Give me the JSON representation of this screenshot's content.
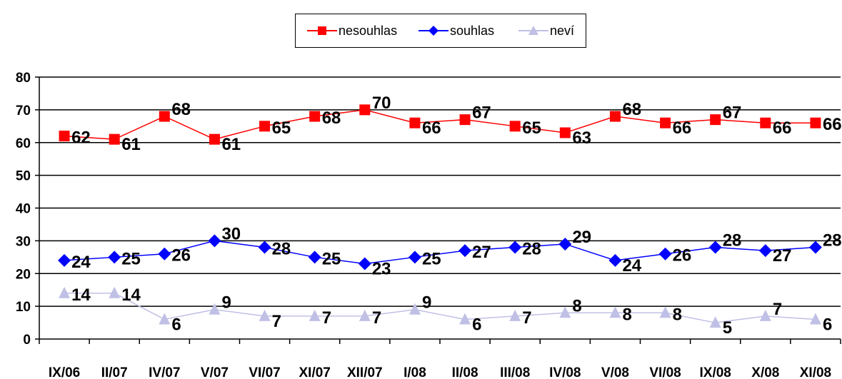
{
  "chart_data": {
    "type": "line",
    "categories": [
      "IX/06",
      "II/07",
      "IV/07",
      "V/07",
      "VI/07",
      "XI/07",
      "XII/07",
      "I/08",
      "II/08",
      "III/08",
      "IV/08",
      "V/08",
      "VI/08",
      "IX/08",
      "X/08",
      "XI/08"
    ],
    "series": [
      {
        "name": "nesouhlas",
        "color": "#ff0000",
        "marker": "square",
        "values": [
          62,
          61,
          68,
          61,
          65,
          68,
          70,
          66,
          67,
          65,
          63,
          68,
          66,
          67,
          66,
          66
        ]
      },
      {
        "name": "souhlas",
        "color": "#0000ff",
        "marker": "diamond",
        "values": [
          24,
          25,
          26,
          30,
          28,
          25,
          23,
          25,
          27,
          28,
          29,
          24,
          26,
          28,
          27,
          28
        ]
      },
      {
        "name": "neví",
        "color": "#c0c0e6",
        "marker": "triangle",
        "values": [
          14,
          14,
          6,
          9,
          7,
          7,
          7,
          9,
          6,
          7,
          8,
          8,
          8,
          5,
          7,
          6
        ]
      }
    ],
    "ylim": [
      0,
      80
    ],
    "yticks": [
      0,
      10,
      20,
      30,
      40,
      50,
      60,
      70,
      80
    ],
    "grid": true,
    "legend_position": "top-center"
  }
}
